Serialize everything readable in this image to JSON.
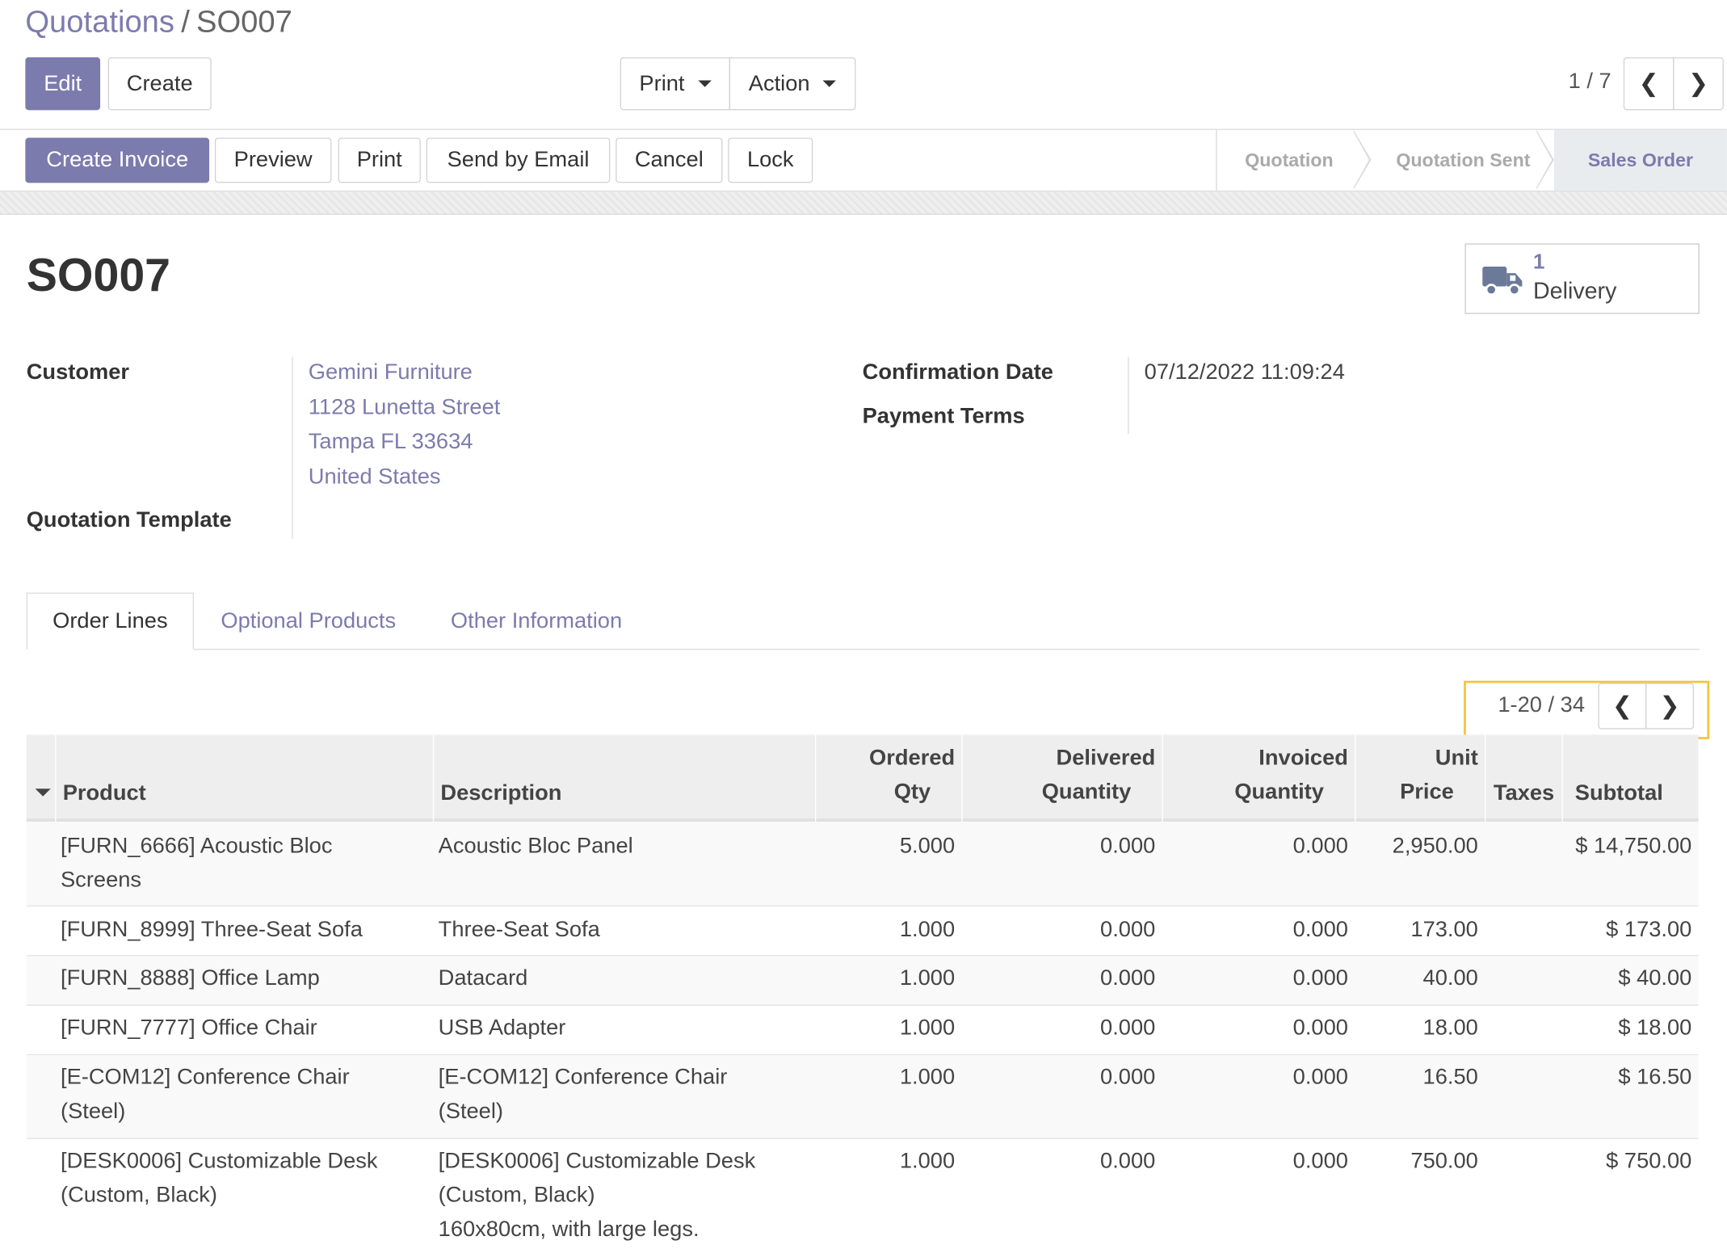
{
  "breadcrumb": {
    "parent": "Quotations",
    "separator": "/",
    "current": "SO007"
  },
  "toolbar": {
    "edit": "Edit",
    "create": "Create",
    "print": "Print",
    "action": "Action",
    "pager": "1 / 7"
  },
  "statusbar": {
    "buttons": [
      "Create Invoice",
      "Preview",
      "Print",
      "Send by Email",
      "Cancel",
      "Lock"
    ],
    "stages": [
      "Quotation",
      "Quotation Sent",
      "Sales Order"
    ],
    "active_stage": "Sales Order"
  },
  "record": {
    "name": "SO007",
    "smart_button": {
      "count": "1",
      "label": "Delivery",
      "icon": "truck-icon"
    },
    "customer_label": "Customer",
    "customer_lines": [
      "Gemini Furniture",
      "1128 Lunetta Street",
      "Tampa FL 33634",
      "United States"
    ],
    "template_label": "Quotation Template",
    "confirmation_label": "Confirmation Date",
    "confirmation_value": "07/12/2022 11:09:24",
    "payment_terms_label": "Payment Terms"
  },
  "tabs": [
    "Order Lines",
    "Optional Products",
    "Other Information"
  ],
  "lines_pager": "1-20 / 34",
  "table": {
    "headers": {
      "product": "Product",
      "description": "Description",
      "ordered_1": "Ordered",
      "ordered_2": "Qty",
      "delivered_1": "Delivered",
      "delivered_2": "Quantity",
      "invoiced_1": "Invoiced",
      "invoiced_2": "Quantity",
      "price_1": "Unit",
      "price_2": "Price",
      "taxes": "Taxes",
      "subtotal": "Subtotal"
    },
    "rows": [
      {
        "product": [
          "[FURN_6666] Acoustic Bloc",
          "Screens"
        ],
        "description": [
          "Acoustic Bloc Panel"
        ],
        "qty": "5.000",
        "delivered": "0.000",
        "invoiced": "0.000",
        "price": "2,950.00",
        "subtotal": "$ 14,750.00"
      },
      {
        "product": [
          "[FURN_8999] Three-Seat Sofa"
        ],
        "description": [
          "Three-Seat Sofa"
        ],
        "qty": "1.000",
        "delivered": "0.000",
        "invoiced": "0.000",
        "price": "173.00",
        "subtotal": "$ 173.00"
      },
      {
        "product": [
          "[FURN_8888] Office Lamp"
        ],
        "description": [
          "Datacard"
        ],
        "qty": "1.000",
        "delivered": "0.000",
        "invoiced": "0.000",
        "price": "40.00",
        "subtotal": "$ 40.00"
      },
      {
        "product": [
          "[FURN_7777] Office Chair"
        ],
        "description": [
          "USB Adapter"
        ],
        "qty": "1.000",
        "delivered": "0.000",
        "invoiced": "0.000",
        "price": "18.00",
        "subtotal": "$ 18.00"
      },
      {
        "product": [
          "[E-COM12] Conference Chair",
          "(Steel)"
        ],
        "description": [
          "[E-COM12] Conference Chair",
          "(Steel)"
        ],
        "qty": "1.000",
        "delivered": "0.000",
        "invoiced": "0.000",
        "price": "16.50",
        "subtotal": "$ 16.50"
      },
      {
        "product": [
          "[DESK0006] Customizable Desk",
          "(Custom, Black)"
        ],
        "description": [
          "[DESK0006] Customizable Desk",
          "(Custom, Black)",
          "160x80cm, with large legs."
        ],
        "qty": "1.000",
        "delivered": "0.000",
        "invoiced": "0.000",
        "price": "750.00",
        "subtotal": "$ 750.00"
      }
    ]
  },
  "colors": {
    "accent": "#7c7bad",
    "highlight": "#f5c342"
  }
}
